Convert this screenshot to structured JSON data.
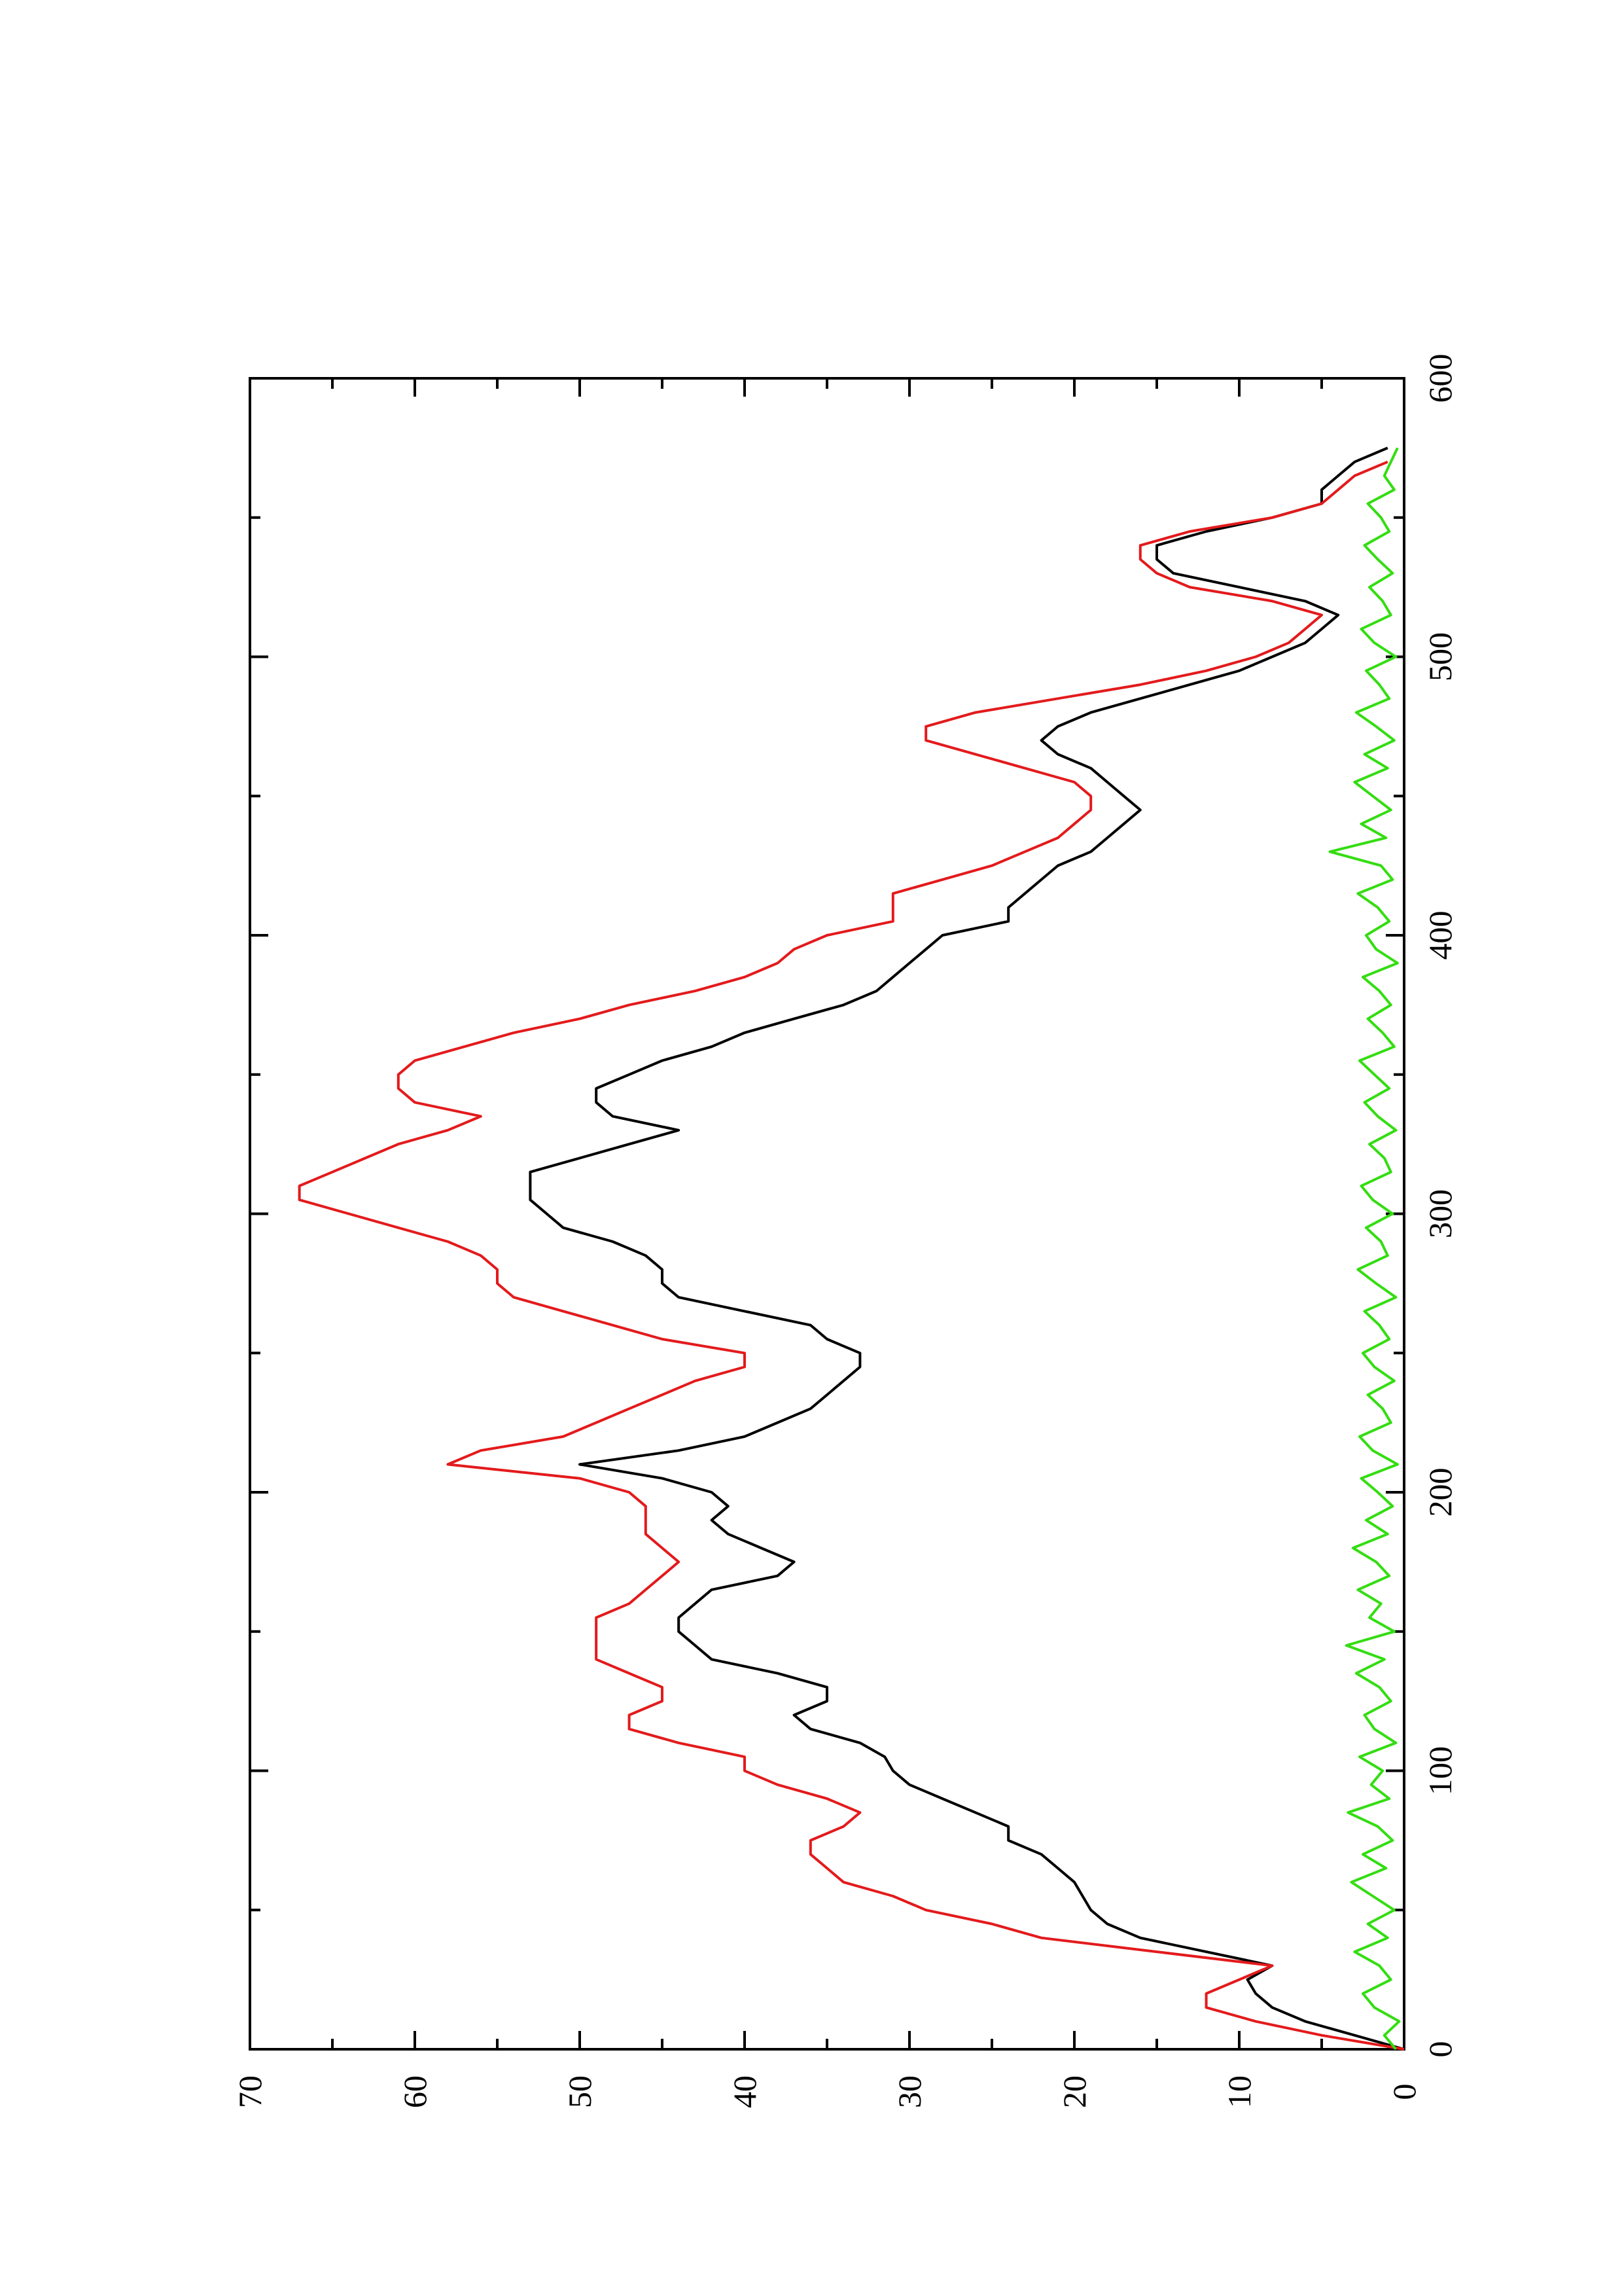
{
  "chart_data": {
    "type": "line",
    "title": "",
    "xlabel": "",
    "ylabel": "",
    "orientation": "rotated-90-ccw",
    "xlim": [
      0,
      600
    ],
    "ylim": [
      0,
      70
    ],
    "grid": false,
    "x_ticks": [
      0,
      100,
      200,
      300,
      400,
      500,
      600
    ],
    "y_ticks": [
      0,
      10,
      20,
      30,
      40,
      50,
      60,
      70
    ],
    "x_tick_labels": [
      "0",
      "100",
      "200",
      "300",
      "400",
      "500",
      "600"
    ],
    "y_tick_labels": [
      "0",
      "10",
      "20",
      "30",
      "40",
      "50",
      "60",
      "70"
    ],
    "series": [
      {
        "color": "#000000",
        "x": [
          0,
          5,
          10,
          15,
          20,
          25,
          30,
          35,
          40,
          45,
          50,
          55,
          60,
          65,
          70,
          75,
          80,
          85,
          90,
          95,
          100,
          105,
          110,
          115,
          120,
          125,
          130,
          135,
          140,
          145,
          150,
          155,
          160,
          165,
          170,
          175,
          180,
          185,
          190,
          195,
          200,
          205,
          210,
          215,
          220,
          225,
          230,
          235,
          240,
          245,
          250,
          255,
          260,
          265,
          270,
          275,
          280,
          285,
          290,
          295,
          300,
          305,
          310,
          315,
          320,
          325,
          330,
          335,
          340,
          345,
          350,
          355,
          360,
          365,
          370,
          375,
          380,
          385,
          390,
          395,
          400,
          405,
          410,
          415,
          420,
          425,
          430,
          435,
          440,
          445,
          450,
          455,
          460,
          465,
          470,
          475,
          480,
          485,
          490,
          495,
          500,
          505,
          510,
          515,
          520,
          525,
          530,
          535,
          540,
          545,
          550,
          555,
          560,
          565,
          570,
          575
        ],
        "values": [
          0,
          3,
          6,
          8,
          9,
          9.5,
          8,
          12,
          16,
          18,
          19,
          19.5,
          20,
          21,
          22,
          24,
          24,
          26,
          28,
          30,
          31,
          31.5,
          33,
          36,
          37,
          35,
          35,
          38,
          42,
          43,
          44,
          44,
          43,
          42,
          38,
          37,
          39,
          41,
          42,
          41,
          42,
          45,
          50,
          44,
          40,
          38,
          36,
          35,
          34,
          33,
          33,
          35,
          36,
          40,
          44,
          45,
          45,
          46,
          48,
          51,
          52,
          53,
          53,
          53,
          50,
          47,
          44,
          48,
          49,
          49,
          47,
          45,
          42,
          40,
          37,
          34,
          32,
          31,
          30,
          29,
          28,
          24,
          24,
          23,
          22,
          21,
          19,
          18,
          17,
          16,
          17,
          18,
          19,
          21,
          22,
          21,
          19,
          16,
          13,
          10,
          8,
          6,
          5,
          4,
          6,
          10,
          14,
          15,
          15,
          12,
          8,
          5,
          5,
          4,
          3,
          1
        ]
      },
      {
        "color": "#e31a1c",
        "x": [
          0,
          5,
          10,
          15,
          20,
          25,
          30,
          35,
          40,
          45,
          50,
          55,
          60,
          65,
          70,
          75,
          80,
          85,
          90,
          95,
          100,
          105,
          110,
          115,
          120,
          125,
          130,
          135,
          140,
          145,
          150,
          155,
          160,
          165,
          170,
          175,
          180,
          185,
          190,
          195,
          200,
          205,
          210,
          215,
          220,
          225,
          230,
          235,
          240,
          245,
          250,
          255,
          260,
          265,
          270,
          275,
          280,
          285,
          290,
          295,
          300,
          305,
          310,
          315,
          320,
          325,
          330,
          335,
          340,
          345,
          350,
          355,
          360,
          365,
          370,
          375,
          380,
          385,
          390,
          395,
          400,
          405,
          410,
          415,
          420,
          425,
          430,
          435,
          440,
          445,
          450,
          455,
          460,
          465,
          470,
          475,
          480,
          485,
          490,
          495,
          500,
          505,
          510,
          515,
          520,
          525,
          530,
          535,
          540,
          545,
          550,
          555,
          560,
          565,
          570
        ],
        "values": [
          0,
          5,
          9,
          12,
          12,
          10,
          8,
          15,
          22,
          25,
          29,
          31,
          34,
          35,
          36,
          36,
          34,
          33,
          35,
          38,
          40,
          40,
          44,
          47,
          47,
          45,
          45,
          47,
          49,
          49,
          49,
          49,
          47,
          46,
          45,
          44,
          45,
          46,
          46,
          46,
          47,
          50,
          58,
          56,
          51,
          49,
          47,
          45,
          43,
          40,
          40,
          45,
          48,
          51,
          54,
          55,
          55,
          56,
          58,
          61,
          64,
          67,
          67,
          65,
          63,
          61,
          58,
          56,
          60,
          61,
          61,
          60,
          57,
          54,
          50,
          47,
          43,
          40,
          38,
          37,
          35,
          31,
          31,
          31,
          28,
          25,
          23,
          21,
          20,
          19,
          19,
          20,
          23,
          26,
          29,
          29,
          26,
          21,
          16,
          12,
          9,
          7,
          6,
          5,
          8,
          13,
          15,
          16,
          16,
          13,
          8,
          5,
          4,
          3,
          1
        ]
      },
      {
        "color": "#33dd11",
        "x": [
          0,
          5,
          10,
          15,
          20,
          25,
          30,
          35,
          40,
          45,
          50,
          55,
          60,
          65,
          70,
          75,
          80,
          85,
          90,
          95,
          100,
          105,
          110,
          115,
          120,
          125,
          130,
          135,
          140,
          145,
          150,
          155,
          160,
          165,
          170,
          175,
          180,
          185,
          190,
          195,
          200,
          205,
          210,
          215,
          220,
          225,
          230,
          235,
          240,
          245,
          250,
          255,
          260,
          265,
          270,
          275,
          280,
          285,
          290,
          295,
          300,
          305,
          310,
          315,
          320,
          325,
          330,
          335,
          340,
          345,
          350,
          355,
          360,
          365,
          370,
          375,
          380,
          385,
          390,
          395,
          400,
          405,
          410,
          415,
          420,
          425,
          430,
          435,
          440,
          445,
          450,
          455,
          460,
          465,
          470,
          475,
          480,
          485,
          490,
          495,
          500,
          505,
          510,
          515,
          520,
          525,
          530,
          535,
          540,
          545,
          550,
          555,
          560,
          565,
          570,
          575
        ],
        "values": [
          0.5,
          1.2,
          0.3,
          1.8,
          2.5,
          0.8,
          1.5,
          3,
          1,
          2.2,
          0.6,
          1.9,
          3.2,
          1.1,
          2.5,
          0.7,
          1.6,
          3.4,
          0.9,
          2,
          1.3,
          2.7,
          0.5,
          1.8,
          2.4,
          0.8,
          1.5,
          2.9,
          1.2,
          3.5,
          0.6,
          2.1,
          1.4,
          2.8,
          0.9,
          1.7,
          3.1,
          1,
          2.3,
          0.7,
          1.6,
          2.6,
          0.4,
          1.9,
          2.7,
          0.8,
          1.3,
          2.2,
          0.6,
          1.8,
          2.5,
          0.9,
          1.5,
          2.4,
          0.5,
          1.7,
          2.8,
          1,
          1.4,
          2.3,
          0.7,
          1.9,
          2.6,
          0.8,
          1.2,
          2.1,
          0.5,
          1.6,
          2.4,
          0.9,
          1.8,
          2.7,
          0.6,
          1.3,
          2.2,
          0.8,
          1.5,
          2.5,
          0.4,
          1.7,
          2.3,
          0.9,
          1.6,
          2.8,
          0.7,
          1.4,
          4.5,
          1.1,
          2.6,
          0.8,
          1.9,
          3,
          1,
          2.4,
          0.6,
          1.7,
          2.9,
          0.9,
          1.5,
          2.3,
          0.5,
          1.8,
          2.6,
          0.8,
          1.3,
          2.1,
          0.7,
          1.6,
          2.4,
          0.9,
          1.4,
          2.2,
          0.6,
          1.2,
          0.8,
          0.4
        ]
      }
    ]
  }
}
